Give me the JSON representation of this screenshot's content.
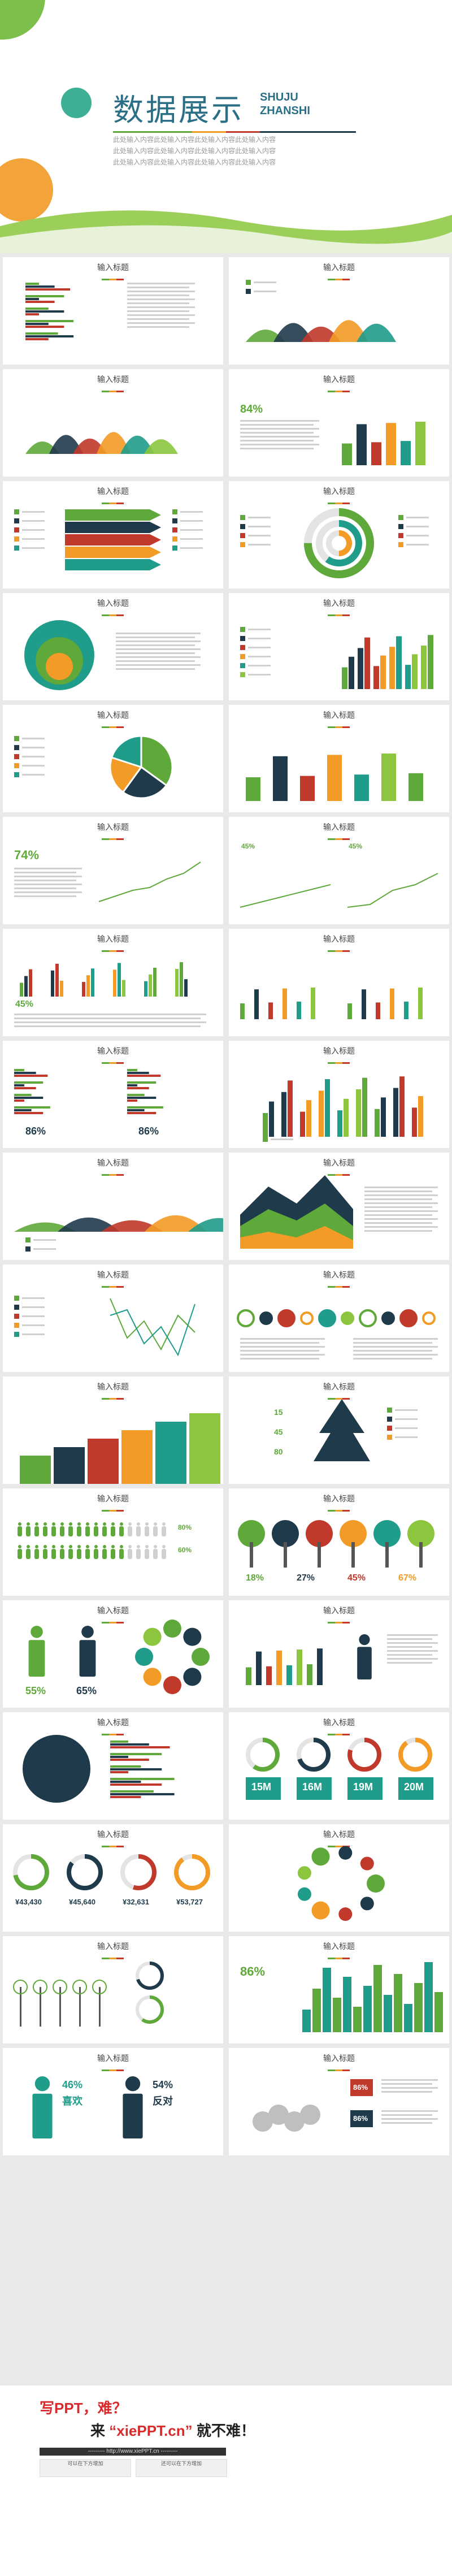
{
  "cover": {
    "title": "数据展示",
    "title_en_1": "SHUJU",
    "title_en_2": "ZHANSHI",
    "subtitle_1": "此处输入内容此处输入内容此处输入内容此处输入内容",
    "subtitle_2": "此处输入内容此处输入内容此处输入内容此处输入内容",
    "subtitle_3": "此处输入内容此处输入内容此处输入内容此处输入内容"
  },
  "slide_title": "输入标题",
  "colors": {
    "green": "#5fa83a",
    "dark": "#1f3a4a",
    "red": "#c0392b",
    "orange": "#f29b26",
    "teal": "#1f9c8a",
    "lime": "#8cc63f"
  },
  "slides": {
    "s4_pct": "84%",
    "s12_pct": "74%",
    "s13_lbl_1": "45%",
    "s13_lbl_2": "45%",
    "s14_lbl": "45%",
    "s16_pct_1": "86%",
    "s16_pct_2": "86%",
    "s24_num_1": "15",
    "s24_num_2": "45",
    "s24_num_3": "80",
    "s25_pct_1": "80%",
    "s25_pct_2": "60%",
    "s27_p1": "18%",
    "s27_p2": "27%",
    "s27_p3": "45%",
    "s27_p4": "67%",
    "s28_p1": "55%",
    "s28_p2": "65%",
    "s32_m1": "15M",
    "s32_m2": "16M",
    "s32_m3": "19M",
    "s32_m4": "20M",
    "s33_v1": "¥43,430",
    "s33_v2": "¥45,640",
    "s33_v3": "¥32,631",
    "s33_v4": "¥53,727",
    "s36_pct": "86%",
    "s37_p1": "46%",
    "s37_t1": "喜欢",
    "s37_p2": "54%",
    "s37_t2": "反对",
    "s38_p1": "86%",
    "s38_p2": "86%"
  },
  "footer": {
    "line1": "写PPT，难？",
    "line2_a": "来",
    "line2_b": "“xiePPT.cn”",
    "line2_c": "就不难！",
    "url": "--------- http://www.xiePPT.cn ---------",
    "box1": "可以在下方增加",
    "box2": "还可以在下方增加"
  }
}
